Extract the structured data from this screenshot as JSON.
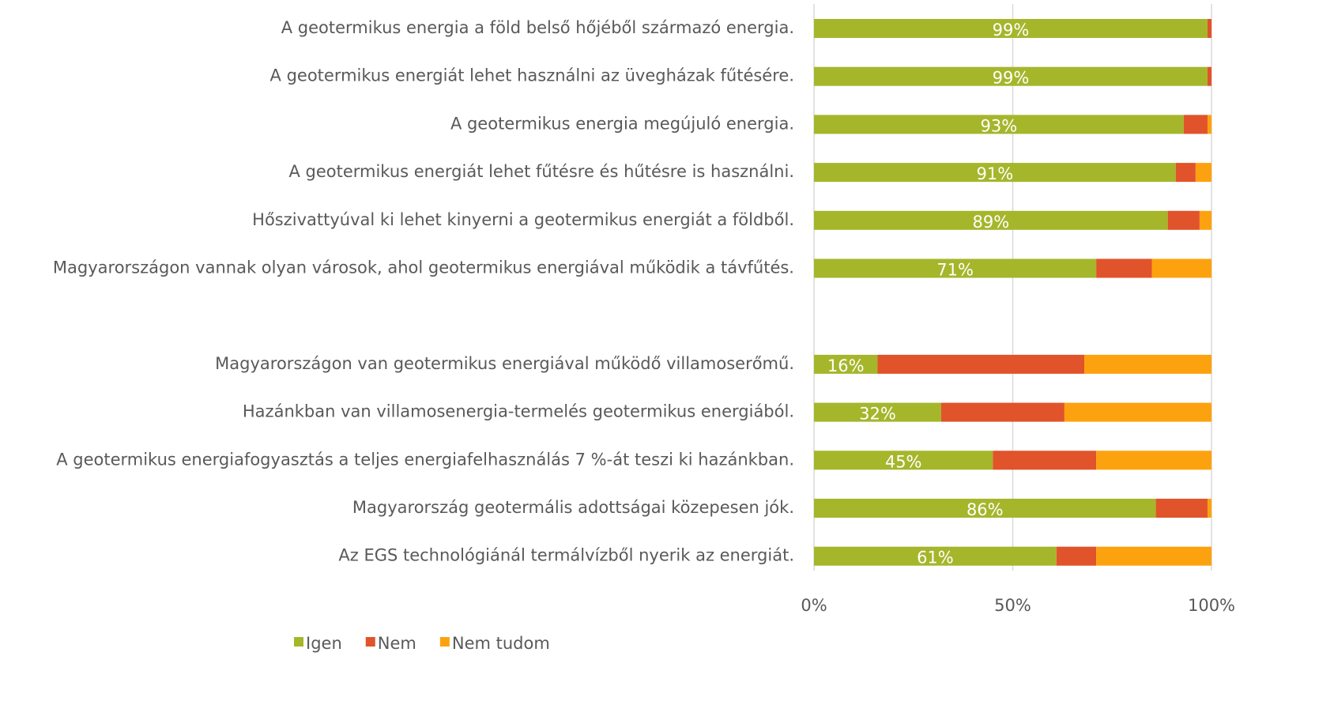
{
  "chart_data": {
    "type": "stacked-barh",
    "categories": [
      "A geotermikus energia a föld belső hőjéből származó energia.",
      "A geotermikus energiát lehet használni az üvegházak fűtésére.",
      "A geotermikus energia megújuló energia.",
      "A geotermikus energiát lehet fűtésre és hűtésre is használni.",
      "Hőszivattyúval ki lehet kinyerni a geotermikus energiát a földből.",
      "Magyarországon vannak olyan városok, ahol geotermikus energiával működik a távfűtés.",
      null,
      "Magyarországon van geotermikus energiával működő villamoserőmű.",
      "Hazánkban van villamosenergia-termelés geotermikus energiából.",
      "A geotermikus energiafogyasztás a teljes energiafelhasználás 7 %-át teszi ki hazánkban.",
      "Magyarország geotermális adottságai közepesen jók.",
      "Az EGS technológiánál termálvízből nyerik az energiát."
    ],
    "series": [
      {
        "name": "Igen",
        "color": "#a5b62b",
        "values": [
          99,
          99,
          93,
          91,
          89,
          71,
          null,
          16,
          32,
          45,
          86,
          61
        ],
        "value_labels": [
          "99%",
          "99%",
          "93%",
          "91%",
          "89%",
          "71%",
          null,
          "16%",
          "32%",
          "45%",
          "86%",
          "61%"
        ]
      },
      {
        "name": "Nem",
        "color": "#e1532a",
        "values": [
          1,
          1,
          6,
          5,
          8,
          14,
          null,
          52,
          31,
          26,
          13,
          10
        ]
      },
      {
        "name": "Nem tudom",
        "color": "#fda20f",
        "values": [
          0,
          0,
          1,
          4,
          3,
          15,
          null,
          32,
          37,
          29,
          1,
          29
        ]
      }
    ],
    "xlim": [
      0,
      100
    ],
    "xticks": [
      {
        "value": 0,
        "label": "0%"
      },
      {
        "value": 50,
        "label": "50%"
      },
      {
        "value": 100,
        "label": "100%"
      }
    ],
    "grid": true,
    "legend": "bottom"
  }
}
